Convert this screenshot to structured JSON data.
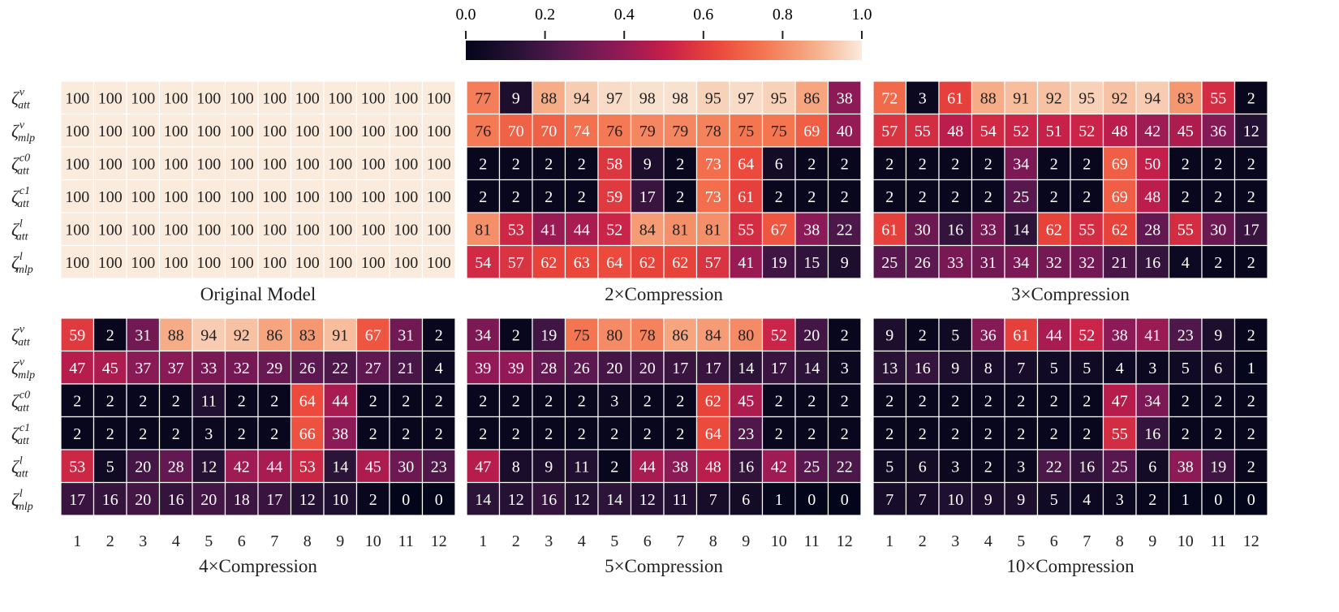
{
  "chart_data": {
    "type": "heatmap",
    "colormap": "rocket",
    "colorbar": {
      "vmin": 0.0,
      "vmax": 1.0,
      "ticks": [
        "0.0",
        "0.2",
        "0.4",
        "0.6",
        "0.8",
        "1.0"
      ]
    },
    "rows": [
      {
        "base": "ζ",
        "sup": "v",
        "sub": "att"
      },
      {
        "base": "ζ",
        "sup": "v",
        "sub": "mlp"
      },
      {
        "base": "ζ",
        "sup": "c0",
        "sub": "att"
      },
      {
        "base": "ζ",
        "sup": "c1",
        "sub": "att"
      },
      {
        "base": "ζ",
        "sup": "l",
        "sub": "att"
      },
      {
        "base": "ζ",
        "sup": "l",
        "sub": "mlp"
      }
    ],
    "columns": [
      "1",
      "2",
      "3",
      "4",
      "5",
      "6",
      "7",
      "8",
      "9",
      "10",
      "11",
      "12"
    ],
    "panels": [
      {
        "title": "Original Model",
        "values": [
          [
            100,
            100,
            100,
            100,
            100,
            100,
            100,
            100,
            100,
            100,
            100,
            100
          ],
          [
            100,
            100,
            100,
            100,
            100,
            100,
            100,
            100,
            100,
            100,
            100,
            100
          ],
          [
            100,
            100,
            100,
            100,
            100,
            100,
            100,
            100,
            100,
            100,
            100,
            100
          ],
          [
            100,
            100,
            100,
            100,
            100,
            100,
            100,
            100,
            100,
            100,
            100,
            100
          ],
          [
            100,
            100,
            100,
            100,
            100,
            100,
            100,
            100,
            100,
            100,
            100,
            100
          ],
          [
            100,
            100,
            100,
            100,
            100,
            100,
            100,
            100,
            100,
            100,
            100,
            100
          ]
        ]
      },
      {
        "title": "2×Compression",
        "values": [
          [
            77,
            9,
            88,
            94,
            97,
            98,
            98,
            95,
            97,
            95,
            86,
            38
          ],
          [
            76,
            70,
            70,
            74,
            76,
            79,
            79,
            78,
            75,
            75,
            69,
            40
          ],
          [
            2,
            2,
            2,
            2,
            58,
            9,
            2,
            73,
            64,
            6,
            2,
            2
          ],
          [
            2,
            2,
            2,
            2,
            59,
            17,
            2,
            73,
            61,
            2,
            2,
            2
          ],
          [
            81,
            53,
            41,
            44,
            52,
            84,
            81,
            81,
            55,
            67,
            38,
            22
          ],
          [
            54,
            57,
            62,
            63,
            64,
            62,
            62,
            57,
            41,
            19,
            15,
            9
          ]
        ]
      },
      {
        "title": "3×Compression",
        "values": [
          [
            72,
            3,
            61,
            88,
            91,
            92,
            95,
            92,
            94,
            83,
            55,
            2
          ],
          [
            57,
            55,
            48,
            54,
            52,
            51,
            52,
            48,
            42,
            45,
            36,
            12
          ],
          [
            2,
            2,
            2,
            2,
            34,
            2,
            2,
            69,
            50,
            2,
            2,
            2
          ],
          [
            2,
            2,
            2,
            2,
            25,
            2,
            2,
            69,
            48,
            2,
            2,
            2
          ],
          [
            61,
            30,
            16,
            33,
            14,
            62,
            55,
            62,
            28,
            55,
            30,
            17
          ],
          [
            25,
            26,
            33,
            31,
            34,
            32,
            32,
            21,
            16,
            4,
            2,
            2
          ]
        ]
      },
      {
        "title": "4×Compression",
        "values": [
          [
            59,
            2,
            31,
            88,
            94,
            92,
            86,
            83,
            91,
            67,
            31,
            2
          ],
          [
            47,
            45,
            37,
            37,
            33,
            32,
            29,
            26,
            22,
            27,
            21,
            4
          ],
          [
            2,
            2,
            2,
            2,
            11,
            2,
            2,
            64,
            44,
            2,
            2,
            2
          ],
          [
            2,
            2,
            2,
            2,
            3,
            2,
            2,
            66,
            38,
            2,
            2,
            2
          ],
          [
            53,
            5,
            20,
            28,
            12,
            42,
            44,
            53,
            14,
            45,
            30,
            23
          ],
          [
            17,
            16,
            20,
            16,
            20,
            18,
            17,
            12,
            10,
            2,
            0,
            0
          ]
        ]
      },
      {
        "title": "5×Compression",
        "values": [
          [
            34,
            2,
            19,
            75,
            80,
            78,
            86,
            84,
            80,
            52,
            20,
            2
          ],
          [
            39,
            39,
            28,
            26,
            20,
            20,
            17,
            17,
            14,
            17,
            14,
            3
          ],
          [
            2,
            2,
            2,
            2,
            3,
            2,
            2,
            62,
            45,
            2,
            2,
            2
          ],
          [
            2,
            2,
            2,
            2,
            2,
            2,
            2,
            64,
            23,
            2,
            2,
            2
          ],
          [
            47,
            8,
            9,
            11,
            2,
            44,
            38,
            48,
            16,
            42,
            25,
            22
          ],
          [
            14,
            12,
            16,
            12,
            14,
            12,
            11,
            7,
            6,
            1,
            0,
            0
          ]
        ]
      },
      {
        "title": "10×Compression",
        "values": [
          [
            9,
            2,
            5,
            36,
            61,
            44,
            52,
            38,
            41,
            23,
            9,
            2
          ],
          [
            13,
            16,
            9,
            8,
            7,
            5,
            5,
            4,
            3,
            5,
            6,
            1
          ],
          [
            2,
            2,
            2,
            2,
            2,
            2,
            2,
            47,
            34,
            2,
            2,
            2
          ],
          [
            2,
            2,
            2,
            2,
            2,
            2,
            2,
            55,
            16,
            2,
            2,
            2
          ],
          [
            5,
            6,
            3,
            2,
            3,
            22,
            16,
            25,
            6,
            38,
            19,
            2
          ],
          [
            7,
            7,
            10,
            9,
            9,
            5,
            4,
            3,
            2,
            1,
            0,
            0
          ]
        ]
      }
    ]
  }
}
